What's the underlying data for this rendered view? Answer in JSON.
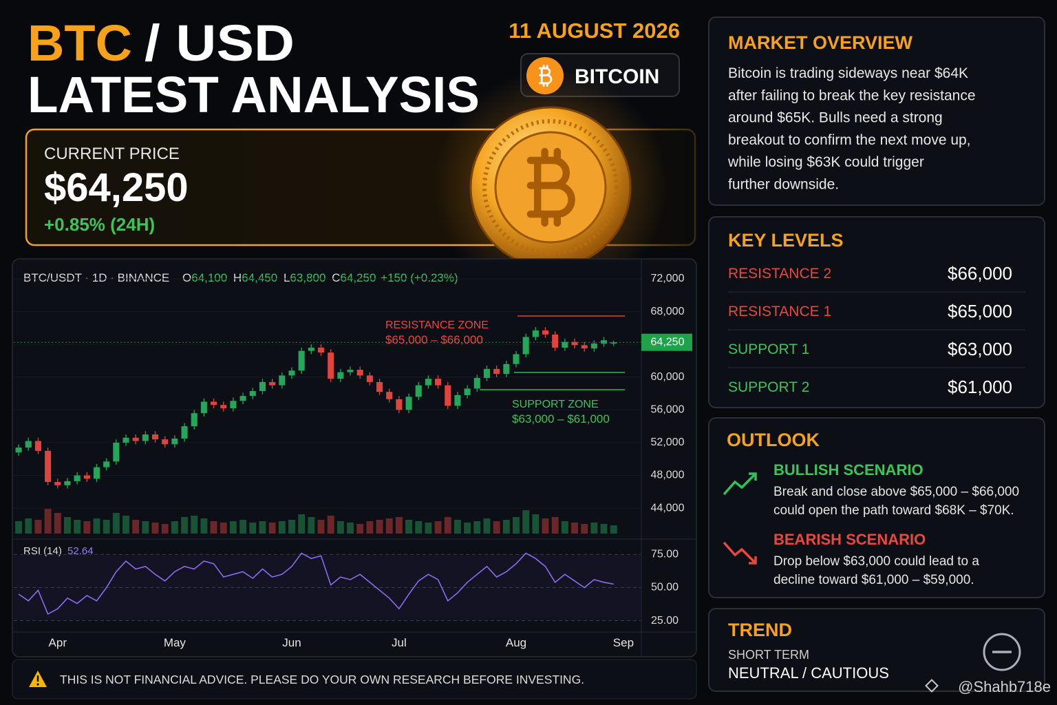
{
  "header": {
    "title_1": "BTC",
    "title_2": "/ USD",
    "title_3": "LATEST ANALYSIS",
    "date": "11 AUGUST 2026",
    "badge": "BITCOIN"
  },
  "price_card": {
    "label": "CURRENT PRICE",
    "price": "$64,250",
    "change": "+0.85% (24H)"
  },
  "chart_data": {
    "type": "candlestick",
    "header": {
      "symbol": "BTC/USDT · 1D · BINANCE",
      "o_label": "O",
      "o": "64,100",
      "h_label": "H",
      "h": "64,450",
      "l_label": "L",
      "l": "63,800",
      "c_label": "C",
      "c": "64,250",
      "change": "+150 (+0.23%)"
    },
    "categories": [
      null,
      null,
      null,
      null,
      "Apr",
      null,
      null,
      null,
      null,
      null,
      null,
      null,
      null,
      null,
      null,
      null,
      "May",
      null,
      null,
      null,
      null,
      null,
      null,
      null,
      null,
      null,
      null,
      null,
      "Jun",
      null,
      null,
      null,
      null,
      null,
      null,
      null,
      null,
      null,
      null,
      "Jul",
      null,
      null,
      null,
      null,
      null,
      null,
      null,
      null,
      null,
      null,
      null,
      "Aug",
      null,
      null,
      null,
      null,
      null,
      null,
      null,
      null,
      null,
      null,
      "Sep"
    ],
    "open": [
      50800,
      51400,
      52200,
      51000,
      47200,
      46800,
      47300,
      48000,
      47600,
      49000,
      49700,
      52000,
      52600,
      52200,
      53000,
      52400,
      51800,
      52500,
      54000,
      55600,
      57000,
      56600,
      56200,
      57100,
      57700,
      58300,
      59400,
      59000,
      60200,
      60800,
      63200,
      63600,
      63000,
      59800,
      60600,
      60900,
      60200,
      59400,
      58200,
      57300,
      56000,
      57600,
      59000,
      59800,
      59000,
      56500,
      57800,
      58600,
      59900,
      61000,
      60400,
      61600,
      62800,
      64900,
      65700,
      65200,
      63600,
      64300,
      63900,
      63500,
      64100,
      64100,
      null
    ],
    "high": [
      51800,
      52600,
      52600,
      51400,
      47600,
      47700,
      48400,
      48400,
      49400,
      50100,
      52400,
      53000,
      53000,
      53400,
      53400,
      52800,
      52900,
      54400,
      56000,
      57400,
      57400,
      57000,
      57500,
      58100,
      58700,
      59800,
      59800,
      60600,
      61200,
      63600,
      64000,
      64000,
      63400,
      61000,
      61300,
      61300,
      60600,
      59800,
      58600,
      57700,
      58000,
      59400,
      60200,
      60200,
      59400,
      58200,
      59000,
      60300,
      61400,
      61400,
      62000,
      63200,
      65300,
      66100,
      66100,
      65600,
      64700,
      64700,
      64300,
      64500,
      64900,
      64450,
      null
    ],
    "low": [
      50400,
      51000,
      50600,
      46800,
      46400,
      46400,
      46900,
      47200,
      47200,
      48600,
      49300,
      51600,
      51800,
      51800,
      52000,
      51400,
      51400,
      52100,
      53600,
      55200,
      56200,
      55800,
      55800,
      56700,
      57300,
      57900,
      58600,
      58600,
      59800,
      60400,
      62800,
      62600,
      59400,
      59400,
      60200,
      59800,
      59000,
      57800,
      56900,
      55600,
      55600,
      57200,
      58600,
      58600,
      56100,
      56100,
      57400,
      58200,
      59500,
      60000,
      60000,
      61200,
      62400,
      64500,
      64800,
      63200,
      63200,
      63500,
      63100,
      63100,
      63700,
      63800,
      null
    ],
    "close": [
      51400,
      52200,
      51000,
      47200,
      46800,
      47300,
      48000,
      47600,
      49000,
      49700,
      52000,
      52600,
      52200,
      53000,
      52400,
      51800,
      52500,
      54000,
      55600,
      57000,
      56600,
      56200,
      57100,
      57700,
      58300,
      59400,
      59000,
      60200,
      60800,
      63200,
      63600,
      63000,
      59800,
      60600,
      60900,
      60200,
      59400,
      58200,
      57300,
      56000,
      57600,
      59000,
      59800,
      59000,
      56500,
      57800,
      58600,
      59900,
      61000,
      60400,
      61600,
      62800,
      64900,
      65700,
      65200,
      63600,
      64300,
      63900,
      63500,
      64100,
      64500,
      64250,
      null
    ],
    "volume": [
      18,
      22,
      20,
      36,
      30,
      24,
      20,
      18,
      22,
      20,
      30,
      26,
      20,
      18,
      16,
      14,
      18,
      24,
      26,
      22,
      18,
      16,
      18,
      20,
      16,
      18,
      16,
      18,
      20,
      28,
      24,
      20,
      26,
      18,
      16,
      14,
      18,
      20,
      22,
      24,
      20,
      18,
      16,
      18,
      24,
      20,
      16,
      18,
      22,
      18,
      20,
      24,
      34,
      28,
      22,
      24,
      18,
      16,
      14,
      16,
      14,
      12,
      null
    ],
    "rsi": [
      45,
      40,
      48,
      30,
      34,
      42,
      38,
      44,
      40,
      50,
      62,
      70,
      64,
      66,
      60,
      55,
      62,
      66,
      64,
      70,
      68,
      58,
      60,
      62,
      57,
      64,
      58,
      60,
      66,
      76,
      72,
      74,
      52,
      58,
      56,
      60,
      54,
      48,
      42,
      34,
      45,
      55,
      60,
      56,
      40,
      46,
      54,
      60,
      66,
      58,
      62,
      68,
      76,
      72,
      66,
      54,
      60,
      55,
      50,
      56,
      54,
      52.64,
      null
    ],
    "rsi_label": "RSI (14)",
    "ylim": [
      40900,
      74100
    ],
    "yticks": [
      {
        "value": 72000,
        "label": "72,000"
      },
      {
        "value": 68000,
        "label": "68,000"
      },
      {
        "value": 64000,
        "label": "64,000"
      },
      {
        "value": 60000,
        "label": "60,000"
      },
      {
        "value": 56000,
        "label": "56,000"
      },
      {
        "value": 52000,
        "label": "52,000"
      },
      {
        "value": 48000,
        "label": "48,000"
      },
      {
        "value": 44000,
        "label": "44,000"
      }
    ],
    "rsi_ylim": [
      18,
      83
    ],
    "rsi_yticks": [
      {
        "value": 75,
        "label": "75.00"
      },
      {
        "value": 50,
        "label": "50.00"
      },
      {
        "value": 25,
        "label": "25.00"
      }
    ],
    "last_price": {
      "value": 64250,
      "label": "64,250"
    },
    "up_color": "#26a65b",
    "down_color": "#e0443e",
    "rsi_color": "#8b6cf0",
    "annotations": {
      "resistance_title": "RESISTANCE ZONE",
      "resistance_range": "$65,000 – $66,000",
      "support_title": "SUPPORT ZONE",
      "support_range": "$63,000 – $61,000"
    }
  },
  "market_overview": {
    "title": "MARKET OVERVIEW",
    "lines": [
      "Bitcoin is trading sideways near $64K",
      "after failing to break the key resistance",
      "around $65K. Bulls need a strong",
      "breakout to confirm the next move up,",
      "while losing $63K could trigger",
      "further downside."
    ]
  },
  "key_levels": {
    "title": "KEY LEVELS",
    "rows": [
      {
        "label": "RESISTANCE 2",
        "value": "$66,000"
      },
      {
        "label": "RESISTANCE 1",
        "value": "$65,000"
      },
      {
        "label": "SUPPORT 1",
        "value": "$63,000"
      },
      {
        "label": "SUPPORT 2",
        "value": "$61,000"
      }
    ]
  },
  "outlook": {
    "title": "OUTLOOK",
    "bullish": {
      "title": "BULLISH SCENARIO",
      "lines": [
        "Break and close above $65,000 – $66,000",
        "could open the path toward $68K – $70K."
      ]
    },
    "bearish": {
      "title": "BEARISH SCENARIO",
      "lines": [
        "Drop below $63,000 could lead to a",
        "decline toward $61,000 – $59,000."
      ]
    }
  },
  "trend": {
    "title": "TREND",
    "term": "SHORT TERM",
    "value": "NEUTRAL / CAUTIOUS"
  },
  "disclaimer": "THIS IS NOT FINANCIAL ADVICE. PLEASE DO YOUR OWN RESEARCH BEFORE INVESTING.",
  "watermark": "@Shahb718e"
}
